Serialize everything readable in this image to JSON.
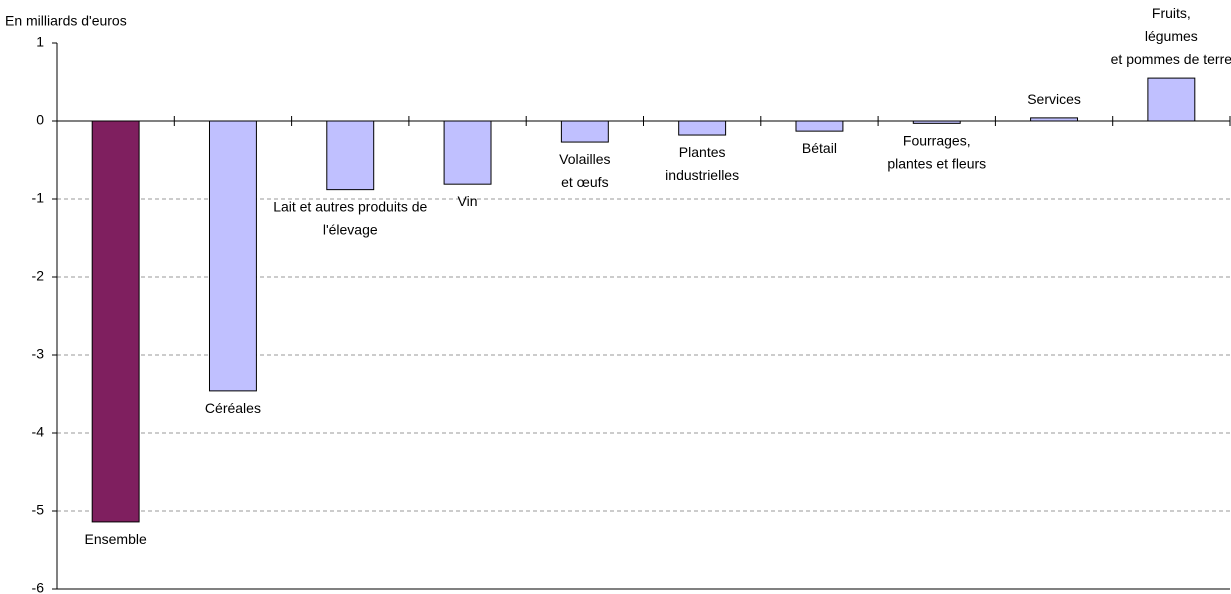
{
  "chart_data": {
    "type": "bar",
    "y_label": "En milliards d'euros",
    "categories": [
      [
        "Ensemble"
      ],
      [
        "Céréales"
      ],
      [
        "Lait et autres produits de",
        "l'élevage"
      ],
      [
        "Vin"
      ],
      [
        "Volailles",
        "et œufs"
      ],
      [
        "Plantes",
        "industrielles"
      ],
      [
        "Bétail"
      ],
      [
        "Fourrages,",
        "plantes et fleurs"
      ],
      [
        "Services"
      ],
      [
        "Fruits,",
        "légumes",
        "et pommes de terre"
      ]
    ],
    "values": [
      -5.14,
      -3.46,
      -0.88,
      -0.81,
      -0.27,
      -0.18,
      -0.13,
      -0.03,
      0.04,
      0.55
    ],
    "colors": [
      "#7f1f5f",
      "#c0c0ff",
      "#c0c0ff",
      "#c0c0ff",
      "#c0c0ff",
      "#c0c0ff",
      "#c0c0ff",
      "#c0c0ff",
      "#c0c0ff",
      "#c0c0ff"
    ],
    "ylim": [
      -6,
      1
    ],
    "yticks": [
      -6,
      -5,
      -4,
      -3,
      -2,
      -1,
      0,
      1
    ],
    "grid": true
  }
}
